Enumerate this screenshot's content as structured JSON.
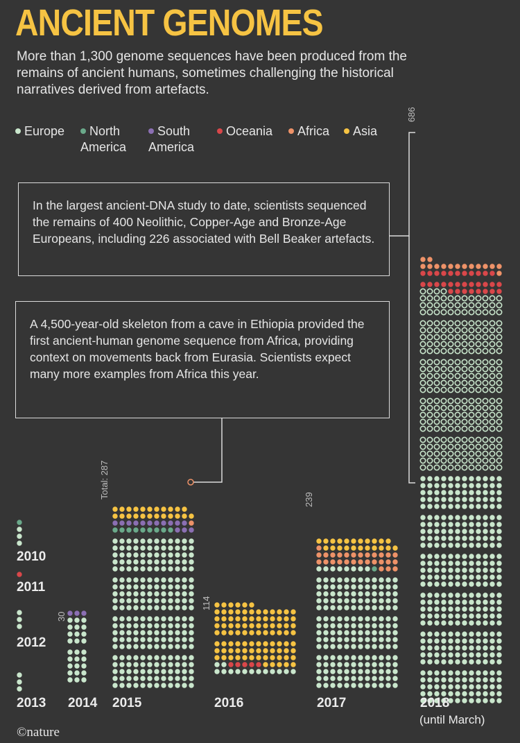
{
  "header": {
    "title": "ANCIENT GENOMES",
    "subtitle": "More than 1,300 genome sequences have been produced from the remains of ancient humans, sometimes challenging the historical narratives derived from artefacts."
  },
  "legend": {
    "items": [
      {
        "label": "Europe",
        "color": "#c9e6cc"
      },
      {
        "label": "North America",
        "color": "#6aa98a"
      },
      {
        "label": "South America",
        "color": "#8b6fb3"
      },
      {
        "label": "Oceania",
        "color": "#d9474a"
      },
      {
        "label": "Africa",
        "color": "#ee9268"
      },
      {
        "label": "Asia",
        "color": "#f6c343"
      }
    ]
  },
  "callouts": {
    "europe_study": "In the largest ancient-DNA study to date, scientists sequenced the remains of 400 Neolithic, Copper-Age and Bronze-Age Europeans, including 226 associated with Bell Beaker artefacts.",
    "africa_skeleton": "A 4,500-year-old skeleton from a cave in Ethiopia provided the first ancient-human genome sequence from Africa, providing context on movements back from Eurasia. Scientists expect many more examples from Africa this year."
  },
  "credit": "©nature",
  "chart_data": {
    "type": "dot-column",
    "unit": "one dot = one genome sequence",
    "categories": [
      "2010",
      "2011",
      "2012",
      "2013",
      "2014",
      "2015",
      "2016",
      "2017",
      "2018"
    ],
    "sublabels": {
      "2018": "(until March)"
    },
    "totals_labels": {
      "2014": "30",
      "2015": "Total: 287",
      "2016": "114",
      "2017": "239",
      "2018": "686"
    },
    "series": [
      {
        "name": "Europe",
        "values": [
          3,
          0,
          3,
          3,
          27,
          240,
          14,
          188,
          640
        ]
      },
      {
        "name": "North America",
        "values": [
          1,
          0,
          0,
          0,
          0,
          9,
          0,
          1,
          0
        ]
      },
      {
        "name": "South America",
        "values": [
          0,
          0,
          0,
          0,
          3,
          14,
          0,
          0,
          0
        ]
      },
      {
        "name": "Oceania",
        "values": [
          0,
          1,
          0,
          0,
          0,
          0,
          5,
          0,
          31
        ]
      },
      {
        "name": "Africa",
        "values": [
          0,
          0,
          0,
          0,
          0,
          1,
          0,
          28,
          15
        ]
      },
      {
        "name": "Asia",
        "values": [
          0,
          0,
          0,
          0,
          0,
          23,
          95,
          22,
          0
        ]
      }
    ],
    "colors": {
      "Europe": "#c9e6cc",
      "North America": "#6aa98a",
      "South America": "#8b6fb3",
      "Oceania": "#d9474a",
      "Africa": "#ee9268",
      "Asia": "#f6c343"
    }
  }
}
